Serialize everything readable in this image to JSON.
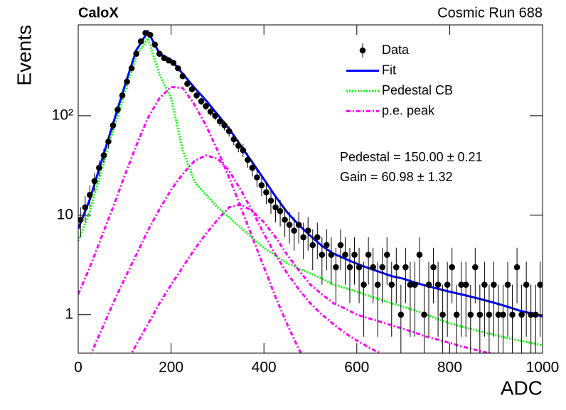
{
  "chart_data": {
    "type": "line",
    "title": "CaloX",
    "subtitle": "Cosmic Run 688",
    "x_label": "ADC",
    "y_label": "Events",
    "log_y": true,
    "legend": "upper right",
    "annotations": [
      "Pedestal = 150.00 ± 0.21",
      "Gain = 60.98 ± 1.32"
    ],
    "xlim": [
      0,
      1000
    ],
    "xticks": [
      0,
      200,
      400,
      600,
      800,
      1000
    ],
    "ylim": [
      0.41,
      820
    ],
    "yticks": [
      1,
      10,
      {
        "value": 100,
        "label": "10²"
      }
    ],
    "x": [
      0,
      25,
      50,
      75,
      100,
      125,
      150,
      175,
      200,
      225,
      250,
      275,
      300,
      325,
      350,
      375,
      400,
      425,
      450,
      475,
      500,
      525,
      550,
      575,
      600,
      625,
      650,
      675,
      700,
      725,
      750,
      775,
      800,
      825,
      850,
      875,
      900,
      925,
      950,
      975,
      1000
    ],
    "series": [
      {
        "name": "Data",
        "type": "errorbar",
        "color": "#000000",
        "x": [
          5,
          15,
          25,
          35,
          45,
          55,
          65,
          75,
          85,
          95,
          105,
          115,
          125,
          135,
          145,
          155,
          165,
          175,
          185,
          195,
          205,
          215,
          225,
          235,
          245,
          255,
          265,
          275,
          285,
          295,
          305,
          315,
          325,
          335,
          345,
          355,
          365,
          375,
          385,
          395,
          405,
          415,
          425,
          435,
          445,
          455,
          465,
          475,
          485,
          495,
          505,
          515,
          525,
          535,
          545,
          555,
          565,
          575,
          585,
          595,
          605,
          615,
          625,
          635,
          645,
          655,
          665,
          675,
          685,
          695,
          705,
          715,
          725,
          735,
          745,
          755,
          765,
          775,
          785,
          795,
          805,
          815,
          825,
          835,
          845,
          855,
          865,
          875,
          885,
          895,
          905,
          915,
          925,
          935,
          945,
          955,
          965,
          975,
          985,
          995
        ],
        "values": [
          9,
          12,
          16,
          22,
          30,
          40,
          55,
          80,
          115,
          160,
          220,
          300,
          420,
          560,
          680,
          650,
          520,
          420,
          380,
          360,
          340,
          300,
          250,
          210,
          185,
          160,
          140,
          125,
          110,
          100,
          88,
          80,
          70,
          58,
          50,
          45,
          36,
          30,
          24,
          20,
          17,
          14,
          12,
          11,
          9,
          8,
          7,
          8,
          6,
          7,
          5,
          6,
          4,
          5,
          4,
          3,
          5,
          4,
          3,
          4,
          3,
          2,
          4,
          3,
          2,
          3,
          4,
          2,
          3,
          1,
          3,
          2,
          2,
          4,
          1,
          2,
          3,
          2,
          1,
          2,
          3,
          1,
          2,
          2,
          1,
          3,
          1,
          2,
          1,
          2,
          1,
          1,
          2,
          1,
          3,
          1,
          2,
          1,
          1,
          2
        ],
        "errors": [
          3,
          3.5,
          4,
          4.7,
          5.5,
          6.3,
          7.4,
          8.9,
          10.7,
          12.6,
          14.8,
          17.3,
          20.5,
          23.7,
          26.1,
          25.5,
          22.8,
          20.5,
          19.5,
          19,
          18.4,
          17.3,
          15.8,
          14.5,
          13.6,
          12.6,
          11.8,
          11.2,
          10.5,
          10,
          9.4,
          8.9,
          8.4,
          7.6,
          7.1,
          6.7,
          6,
          5.5,
          4.9,
          4.5,
          4.1,
          3.7,
          3.5,
          3.3,
          3,
          2.8,
          2.6,
          2.8,
          2.4,
          2.6,
          2.2,
          2.4,
          2,
          2.2,
          2,
          1.7,
          2.2,
          2,
          1.7,
          2,
          1.7,
          1.4,
          2,
          1.7,
          1.4,
          1.7,
          2,
          1.4,
          1.7,
          1,
          1.7,
          1.4,
          1.4,
          2,
          1,
          1.4,
          1.7,
          1.4,
          1,
          1.4,
          1.7,
          1,
          1.4,
          1.4,
          1,
          1.7,
          1,
          1.4,
          1,
          1.4,
          1,
          1,
          1.4,
          1,
          1.7,
          1,
          1.4,
          1,
          1,
          1.4
        ]
      },
      {
        "name": "Fit",
        "type": "line",
        "style": "solid",
        "color": "#0000ff",
        "values": [
          7.3,
          14.4,
          34.7,
          83,
          198,
          455,
          703,
          423,
          365,
          264,
          192,
          143,
          103,
          74,
          50,
          34,
          23,
          15.4,
          10.7,
          8,
          6.2,
          4.9,
          4.1,
          3.65,
          3.25,
          2.94,
          2.68,
          2.44,
          2.3,
          2.1,
          1.95,
          1.82,
          1.7,
          1.6,
          1.5,
          1.4,
          1.3,
          1.2,
          1.1,
          1.03,
          0.96
        ]
      },
      {
        "name": "Pedestal CB",
        "type": "line",
        "style": "dotted",
        "color": "#00ff00",
        "values": [
          5.5,
          11,
          28,
          70,
          170,
          400,
          600,
          260,
          150,
          45,
          22,
          16,
          12,
          9.5,
          7.5,
          5.9,
          4.7,
          3.9,
          3.3,
          2.9,
          2.6,
          2.3,
          2.0,
          1.85,
          1.7,
          1.55,
          1.42,
          1.3,
          1.2,
          1.1,
          1.0,
          0.9,
          0.82,
          0.76,
          0.71,
          0.66,
          0.62,
          0.58,
          0.55,
          0.52,
          0.49
        ]
      },
      {
        "name": "p.e. peak",
        "type": "line",
        "style": "dashdot",
        "color": "#ff00ff",
        "values": [
          1.6,
          3,
          6,
          12,
          25,
          50,
          95,
          150,
          195,
          190,
          130,
          80,
          45,
          24,
          12,
          6,
          3,
          1.5,
          0.8,
          0.45,
          0.28,
          null,
          null,
          null,
          null,
          null,
          null,
          null,
          null,
          null,
          null,
          null,
          null,
          null,
          null,
          null,
          null,
          null,
          null,
          null,
          null
        ]
      },
      {
        "type": "line",
        "style": "dashdot",
        "color": "#ff00ff",
        "values": [
          0.2,
          0.38,
          0.7,
          1.3,
          2.3,
          4,
          7,
          11.5,
          18,
          26,
          35,
          40,
          37,
          28,
          18,
          11,
          6.5,
          4,
          2.6,
          1.8,
          1.3,
          1.0,
          0.8,
          0.65,
          0.55,
          0.47,
          0.41,
          0.36,
          null,
          null,
          null,
          null,
          null,
          null,
          null,
          null,
          null,
          null,
          null,
          null,
          null
        ]
      },
      {
        "type": "line",
        "style": "dashdot",
        "color": "#ff00ff",
        "values": [
          null,
          null,
          null,
          null,
          0.3,
          0.5,
          0.8,
          1.3,
          2,
          3,
          4.5,
          6.5,
          9,
          12,
          12.8,
          11,
          8.5,
          6,
          4,
          2.8,
          2,
          1.6,
          1.3,
          1.15,
          1.0,
          0.92,
          0.85,
          0.78,
          0.72,
          0.66,
          0.6,
          0.56,
          0.52,
          0.48,
          0.45,
          0.42,
          0.4,
          null,
          null,
          null,
          null
        ]
      }
    ]
  }
}
